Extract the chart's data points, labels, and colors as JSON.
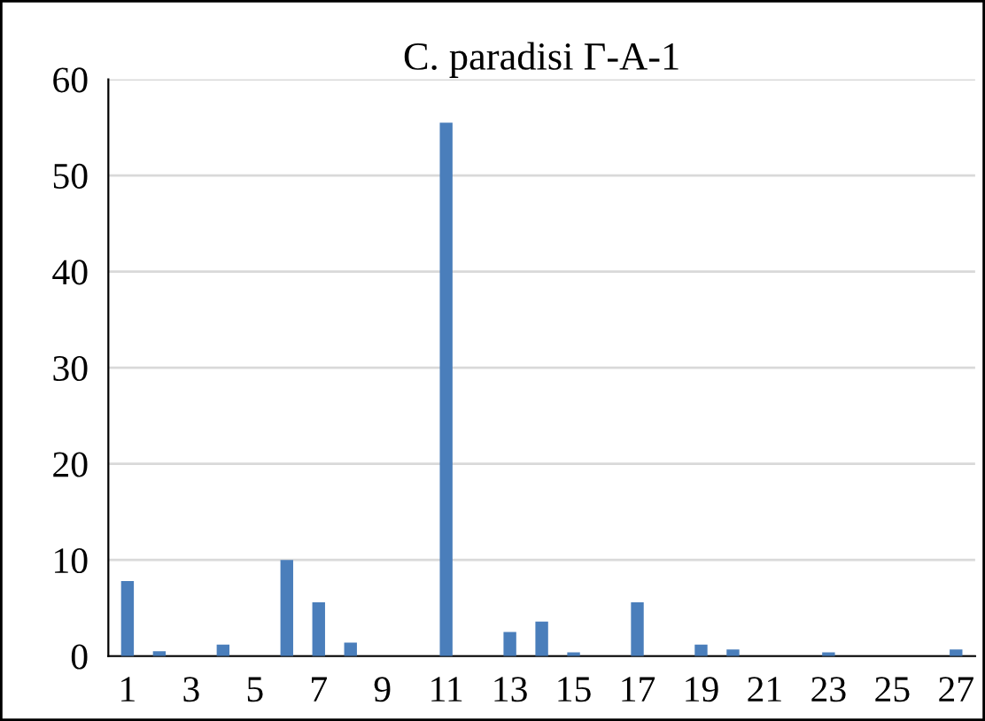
{
  "chart_data": {
    "type": "bar",
    "title": "C. paradisi Γ-A-1",
    "categories": [
      "1",
      null,
      "3",
      null,
      "5",
      null,
      "7",
      null,
      "9",
      null,
      "11",
      null,
      "13",
      null,
      "15",
      null,
      "17",
      null,
      "19",
      null,
      "21",
      null,
      "23",
      null,
      "25",
      null,
      "27"
    ],
    "values": [
      7.8,
      0.5,
      0,
      1.2,
      0,
      10,
      5.6,
      1.4,
      0,
      0,
      55.5,
      0,
      2.5,
      3.6,
      0.4,
      0,
      5.6,
      0,
      1.2,
      0.7,
      0,
      0,
      0.4,
      0,
      0,
      0,
      0.7
    ],
    "color": "#4a7ebb",
    "ylim": [
      0,
      60
    ],
    "yticks": [
      0,
      10,
      20,
      30,
      40,
      50,
      60
    ],
    "grid": "y",
    "legend": false
  }
}
